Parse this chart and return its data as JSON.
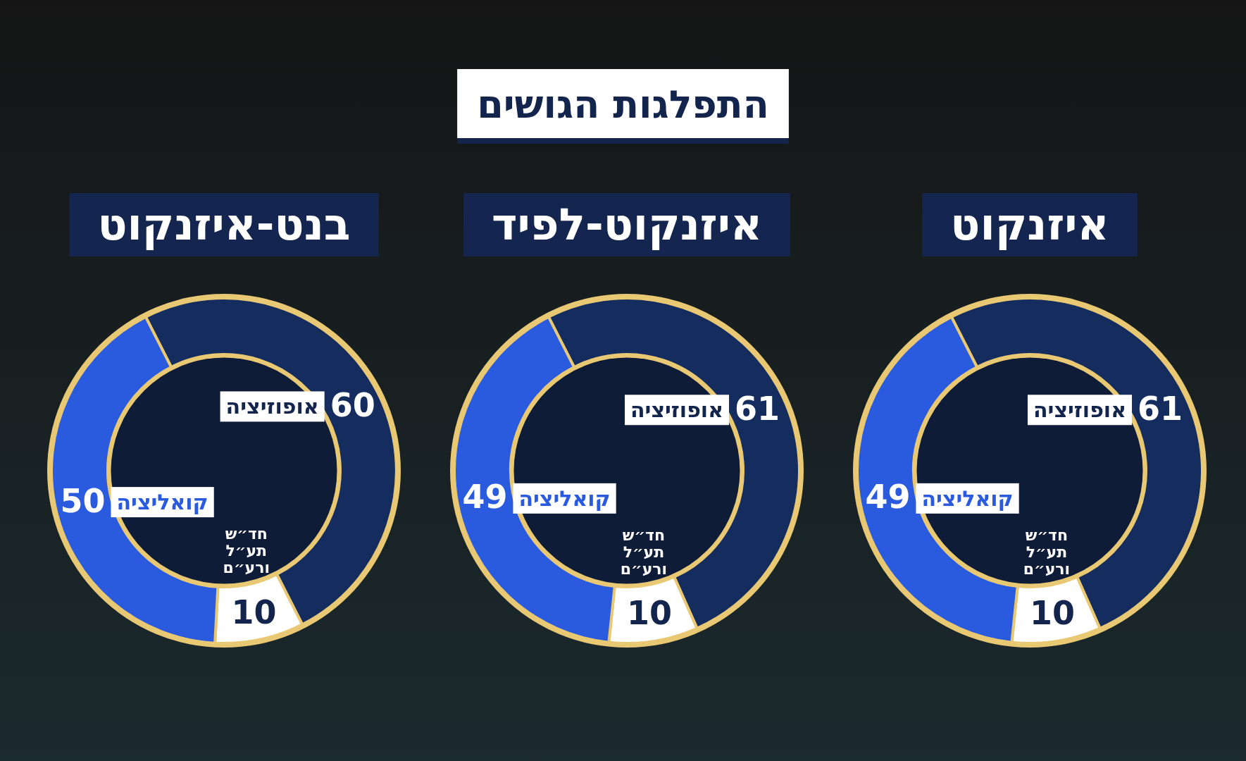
{
  "chart_data": [
    {
      "type": "donut",
      "title": "איזנקוט",
      "categories": [
        "אופוזיציה",
        "חד״ש תע״ל ורע״ם",
        "קואליציה"
      ],
      "values": [
        61,
        10,
        49
      ],
      "colors": [
        "#142c5e",
        "#ffffff",
        "#2a5bdf"
      ],
      "data_labels": true
    },
    {
      "type": "donut",
      "title": "איזנקוט-לפיד",
      "categories": [
        "אופוזיציה",
        "חד״ש תע״ל ורע״ם",
        "קואליציה"
      ],
      "values": [
        61,
        10,
        49
      ],
      "colors": [
        "#142c5e",
        "#ffffff",
        "#2a5bdf"
      ],
      "data_labels": true
    },
    {
      "type": "donut",
      "title": "בנט-איזנקוט",
      "categories": [
        "אופוזיציה",
        "חד״ש תע״ל ורע״ם",
        "קואליציה"
      ],
      "values": [
        60,
        10,
        50
      ],
      "colors": [
        "#142c5e",
        "#ffffff",
        "#2a5bdf"
      ],
      "data_labels": true,
      "annotations": [
        "התפלגות הגושים"
      ]
    }
  ]
}
